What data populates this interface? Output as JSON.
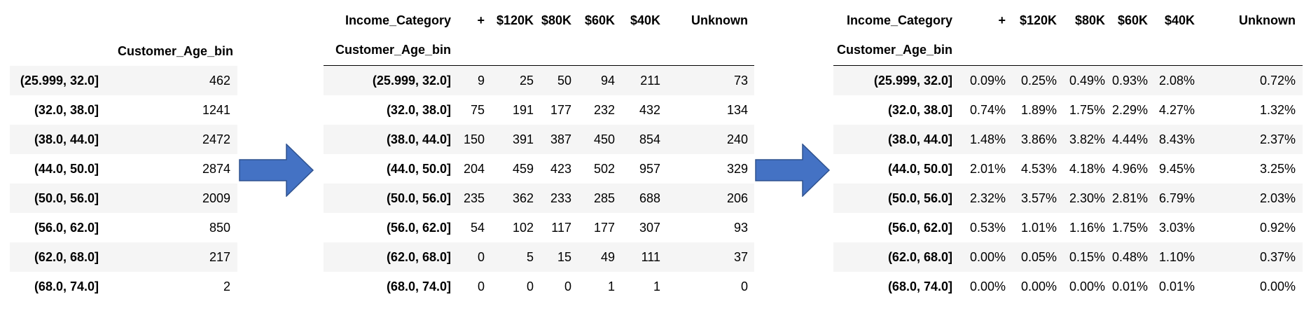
{
  "table1": {
    "index_name": "Customer_Age_bin",
    "rows": [
      {
        "bin": "(25.999, 32.0]",
        "value": "462"
      },
      {
        "bin": "(32.0, 38.0]",
        "value": "1241"
      },
      {
        "bin": "(38.0, 44.0]",
        "value": "2472"
      },
      {
        "bin": "(44.0, 50.0]",
        "value": "2874"
      },
      {
        "bin": "(50.0, 56.0]",
        "value": "2009"
      },
      {
        "bin": "(56.0, 62.0]",
        "value": "850"
      },
      {
        "bin": "(62.0, 68.0]",
        "value": "217"
      },
      {
        "bin": "(68.0, 74.0]",
        "value": "2"
      }
    ]
  },
  "table2": {
    "columns_name": "Income_Category",
    "index_name": "Customer_Age_bin",
    "columns": [
      "+",
      "$120K",
      "$80K",
      "$60K",
      "$40K",
      "Unknown"
    ],
    "rows": [
      {
        "bin": "(25.999, 32.0]",
        "values": [
          "9",
          "25",
          "50",
          "94",
          "211",
          "73"
        ]
      },
      {
        "bin": "(32.0, 38.0]",
        "values": [
          "75",
          "191",
          "177",
          "232",
          "432",
          "134"
        ]
      },
      {
        "bin": "(38.0, 44.0]",
        "values": [
          "150",
          "391",
          "387",
          "450",
          "854",
          "240"
        ]
      },
      {
        "bin": "(44.0, 50.0]",
        "values": [
          "204",
          "459",
          "423",
          "502",
          "957",
          "329"
        ]
      },
      {
        "bin": "(50.0, 56.0]",
        "values": [
          "235",
          "362",
          "233",
          "285",
          "688",
          "206"
        ]
      },
      {
        "bin": "(56.0, 62.0]",
        "values": [
          "54",
          "102",
          "117",
          "177",
          "307",
          "93"
        ]
      },
      {
        "bin": "(62.0, 68.0]",
        "values": [
          "0",
          "5",
          "15",
          "49",
          "111",
          "37"
        ]
      },
      {
        "bin": "(68.0, 74.0]",
        "values": [
          "0",
          "0",
          "0",
          "1",
          "1",
          "0"
        ]
      }
    ]
  },
  "table3": {
    "columns_name": "Income_Category",
    "index_name": "Customer_Age_bin",
    "columns": [
      "+",
      "$120K",
      "$80K",
      "$60K",
      "$40K",
      "Unknown"
    ],
    "rows": [
      {
        "bin": "(25.999, 32.0]",
        "values": [
          "0.09%",
          "0.25%",
          "0.49%",
          "0.93%",
          "2.08%",
          "0.72%"
        ]
      },
      {
        "bin": "(32.0, 38.0]",
        "values": [
          "0.74%",
          "1.89%",
          "1.75%",
          "2.29%",
          "4.27%",
          "1.32%"
        ]
      },
      {
        "bin": "(38.0, 44.0]",
        "values": [
          "1.48%",
          "3.86%",
          "3.82%",
          "4.44%",
          "8.43%",
          "2.37%"
        ]
      },
      {
        "bin": "(44.0, 50.0]",
        "values": [
          "2.01%",
          "4.53%",
          "4.18%",
          "4.96%",
          "9.45%",
          "3.25%"
        ]
      },
      {
        "bin": "(50.0, 56.0]",
        "values": [
          "2.32%",
          "3.57%",
          "2.30%",
          "2.81%",
          "6.79%",
          "2.03%"
        ]
      },
      {
        "bin": "(56.0, 62.0]",
        "values": [
          "0.53%",
          "1.01%",
          "1.16%",
          "1.75%",
          "3.03%",
          "0.92%"
        ]
      },
      {
        "bin": "(62.0, 68.0]",
        "values": [
          "0.00%",
          "0.05%",
          "0.15%",
          "0.48%",
          "1.10%",
          "0.37%"
        ]
      },
      {
        "bin": "(68.0, 74.0]",
        "values": [
          "0.00%",
          "0.00%",
          "0.00%",
          "0.01%",
          "0.01%",
          "0.00%"
        ]
      }
    ]
  },
  "arrows": {
    "icon": "right-arrow-icon",
    "color": "#4472c4",
    "stroke": "#2f528f"
  },
  "table_colors": {
    "shade": "#f5f5f5",
    "rule": "#000000"
  }
}
